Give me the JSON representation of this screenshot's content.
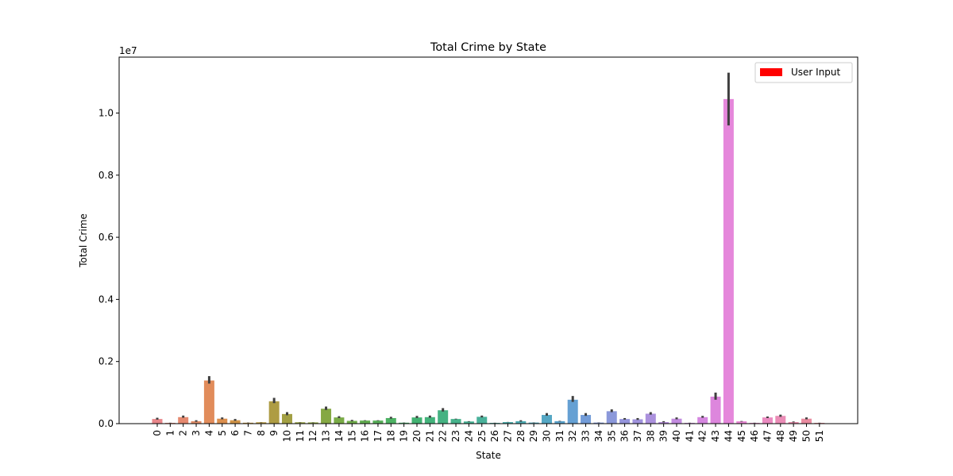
{
  "chart_data": {
    "type": "bar",
    "title": "Total Crime by State",
    "xlabel": "State",
    "ylabel": "Total Crime",
    "y_offset_label": "1e7",
    "y_scale_factor": 10000000,
    "ylim": [
      0,
      11800000
    ],
    "y_ticks": [
      0,
      2000000,
      4000000,
      6000000,
      8000000,
      10000000
    ],
    "y_tick_labels": [
      "0.0",
      "0.2",
      "0.4",
      "0.6",
      "0.8",
      "1.0"
    ],
    "legend": {
      "position": "top-right",
      "entries": [
        {
          "label": "User Input",
          "color": "#ff0000"
        }
      ]
    },
    "grid": false,
    "categories": [
      "0",
      "1",
      "2",
      "3",
      "4",
      "5",
      "6",
      "7",
      "8",
      "9",
      "10",
      "11",
      "12",
      "13",
      "14",
      "15",
      "16",
      "17",
      "18",
      "19",
      "20",
      "21",
      "22",
      "23",
      "24",
      "25",
      "26",
      "27",
      "28",
      "29",
      "30",
      "31",
      "32",
      "33",
      "34",
      "35",
      "36",
      "37",
      "38",
      "39",
      "40",
      "41",
      "42",
      "43",
      "44",
      "45",
      "46",
      "47",
      "48",
      "49",
      "50",
      "51"
    ],
    "values": [
      150000,
      25000,
      210000,
      80000,
      1390000,
      160000,
      110000,
      30000,
      45000,
      720000,
      310000,
      45000,
      40000,
      480000,
      200000,
      90000,
      100000,
      100000,
      180000,
      30000,
      200000,
      210000,
      430000,
      150000,
      70000,
      220000,
      25000,
      50000,
      80000,
      35000,
      280000,
      80000,
      770000,
      280000,
      35000,
      400000,
      150000,
      140000,
      320000,
      50000,
      160000,
      25000,
      210000,
      870000,
      10450000,
      75000,
      25000,
      200000,
      250000,
      50000,
      160000,
      25000
    ],
    "error_low": [
      130000,
      20000,
      190000,
      60000,
      1290000,
      140000,
      90000,
      25000,
      40000,
      660000,
      270000,
      40000,
      35000,
      440000,
      180000,
      75000,
      90000,
      90000,
      160000,
      25000,
      180000,
      190000,
      390000,
      140000,
      60000,
      200000,
      20000,
      45000,
      65000,
      30000,
      255000,
      70000,
      700000,
      250000,
      30000,
      370000,
      130000,
      120000,
      290000,
      40000,
      140000,
      20000,
      190000,
      770000,
      9600000,
      65000,
      20000,
      180000,
      220000,
      40000,
      140000,
      20000
    ],
    "error_high": [
      190000,
      30000,
      260000,
      110000,
      1530000,
      200000,
      150000,
      35000,
      50000,
      830000,
      370000,
      50000,
      45000,
      550000,
      240000,
      120000,
      110000,
      110000,
      220000,
      35000,
      250000,
      260000,
      500000,
      160000,
      80000,
      260000,
      30000,
      55000,
      110000,
      40000,
      340000,
      90000,
      890000,
      340000,
      40000,
      460000,
      180000,
      180000,
      370000,
      80000,
      200000,
      30000,
      250000,
      1000000,
      11300000,
      85000,
      30000,
      230000,
      290000,
      70000,
      200000,
      30000
    ],
    "colors": [
      "#e8868a",
      "#e88a7a",
      "#e5896f",
      "#e28f6a",
      "#e18c5b",
      "#db8f4e",
      "#d19447",
      "#c69a45",
      "#bb9d43",
      "#ae9c43",
      "#a29f43",
      "#98a243",
      "#8ea543",
      "#85a844",
      "#79ab46",
      "#6fad4a",
      "#64af52",
      "#59b05a",
      "#4db263",
      "#45b36b",
      "#42b272",
      "#43b27b",
      "#45b282",
      "#46b28b",
      "#48b193",
      "#49b19a",
      "#4aafa3",
      "#4caeab",
      "#4eacb3",
      "#51a9bb",
      "#55a7c4",
      "#5ba3cc",
      "#65a0d3",
      "#739cd8",
      "#809ad9",
      "#8b98da",
      "#9595dc",
      "#a093dd",
      "#ab91dd",
      "#b78ede",
      "#c28bdf",
      "#cc89df",
      "#d587df",
      "#dd86dd",
      "#e587db",
      "#e888d4",
      "#e98ac9",
      "#ea8bc0",
      "#ea8cb6",
      "#ea8cab",
      "#e98ca0",
      "#e98b95"
    ]
  }
}
